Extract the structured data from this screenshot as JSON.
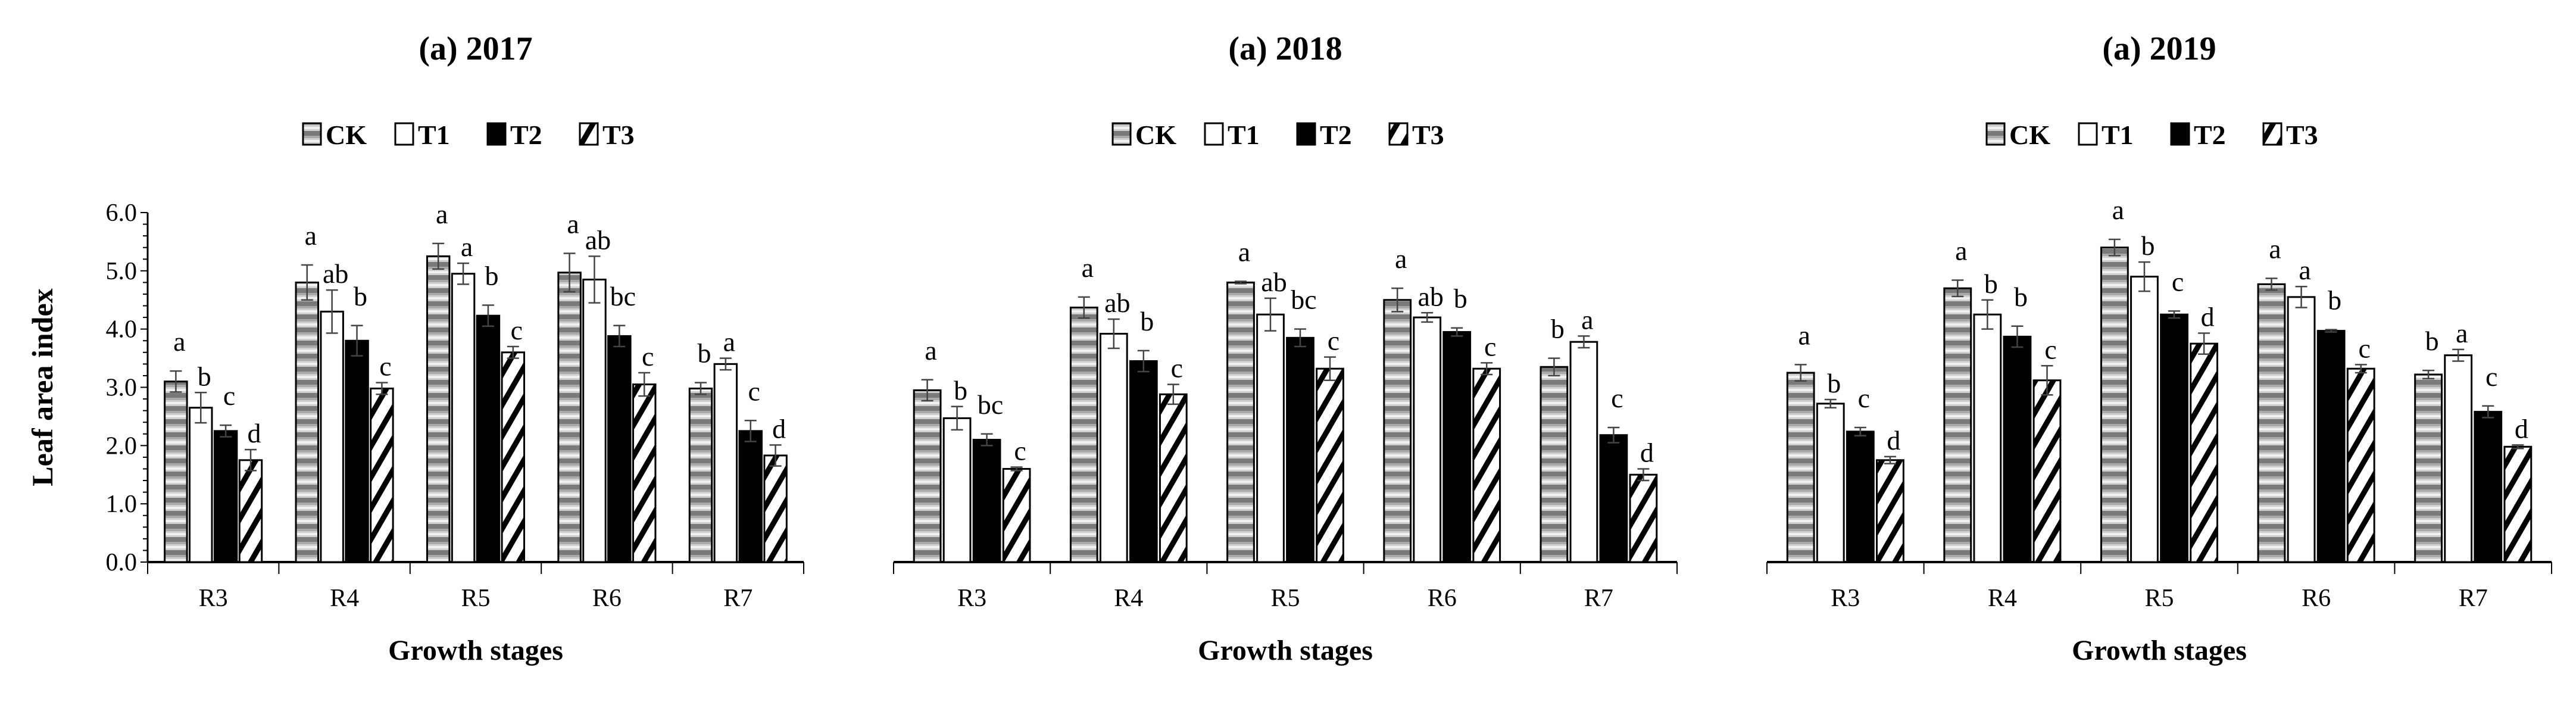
{
  "chart_data": [
    {
      "type": "bar",
      "title": "(a) 2017",
      "xlabel": "Growth stages",
      "ylabel": "Leaf area index",
      "ylim": [
        0,
        6
      ],
      "yticks": [
        "0.0",
        "1.0",
        "2.0",
        "3.0",
        "4.0",
        "5.0",
        "6.0"
      ],
      "categories": [
        "R3",
        "R4",
        "R5",
        "R6",
        "R7"
      ],
      "series": [
        {
          "name": "CK",
          "values": [
            3.1,
            4.8,
            5.25,
            4.97,
            2.98
          ],
          "errors": [
            0.18,
            0.3,
            0.22,
            0.33,
            0.1
          ],
          "letters": [
            "a",
            "a",
            "a",
            "a",
            "b"
          ]
        },
        {
          "name": "T1",
          "values": [
            2.65,
            4.3,
            4.95,
            4.85,
            3.4
          ],
          "errors": [
            0.26,
            0.37,
            0.18,
            0.4,
            0.1
          ],
          "letters": [
            "b",
            "ab",
            "a",
            "ab",
            "a"
          ]
        },
        {
          "name": "T2",
          "values": [
            2.25,
            3.8,
            4.23,
            3.88,
            2.25
          ],
          "errors": [
            0.1,
            0.26,
            0.18,
            0.18,
            0.18
          ],
          "letters": [
            "c",
            "b",
            "b",
            "bc",
            "c"
          ]
        },
        {
          "name": "T3",
          "values": [
            1.75,
            2.98,
            3.6,
            3.05,
            1.83
          ],
          "errors": [
            0.18,
            0.1,
            0.1,
            0.2,
            0.18
          ],
          "letters": [
            "d",
            "c",
            "c",
            "c",
            "d"
          ]
        }
      ]
    },
    {
      "type": "bar",
      "title": "(a) 2018",
      "xlabel": "Growth stages",
      "ylabel": "",
      "ylim": [
        0,
        6
      ],
      "categories": [
        "R3",
        "R4",
        "R5",
        "R6",
        "R7"
      ],
      "series": [
        {
          "name": "CK",
          "values": [
            2.95,
            4.37,
            4.8,
            4.5,
            3.35
          ],
          "errors": [
            0.18,
            0.18,
            0.02,
            0.2,
            0.15
          ],
          "letters": [
            "a",
            "a",
            "a",
            "a",
            "b"
          ]
        },
        {
          "name": "T1",
          "values": [
            2.47,
            3.92,
            4.25,
            4.2,
            3.78
          ],
          "errors": [
            0.2,
            0.25,
            0.28,
            0.08,
            0.1
          ],
          "letters": [
            "b",
            "ab",
            "ab",
            "ab",
            "a"
          ]
        },
        {
          "name": "T2",
          "values": [
            2.1,
            3.45,
            3.85,
            3.95,
            2.18
          ],
          "errors": [
            0.1,
            0.18,
            0.15,
            0.07,
            0.13
          ],
          "letters": [
            "bc",
            "b",
            "bc",
            "b",
            "c"
          ]
        },
        {
          "name": "T3",
          "values": [
            1.6,
            2.88,
            3.32,
            3.32,
            1.5
          ],
          "errors": [
            0.03,
            0.17,
            0.2,
            0.1,
            0.1
          ],
          "letters": [
            "c",
            "c",
            "c",
            "c",
            "d"
          ]
        }
      ]
    },
    {
      "type": "bar",
      "title": "(a) 2019",
      "xlabel": "Growth stages",
      "ylabel": "",
      "ylim": [
        0,
        6
      ],
      "categories": [
        "R3",
        "R4",
        "R5",
        "R6",
        "R7"
      ],
      "series": [
        {
          "name": "CK",
          "values": [
            3.25,
            4.7,
            5.4,
            4.77,
            3.22
          ],
          "errors": [
            0.14,
            0.14,
            0.14,
            0.1,
            0.07
          ],
          "letters": [
            "a",
            "a",
            "a",
            "a",
            "b"
          ]
        },
        {
          "name": "T1",
          "values": [
            2.72,
            4.25,
            4.9,
            4.55,
            3.55
          ],
          "errors": [
            0.07,
            0.25,
            0.25,
            0.18,
            0.1
          ],
          "letters": [
            "b",
            "b",
            "b",
            "a",
            "a"
          ]
        },
        {
          "name": "T2",
          "values": [
            2.24,
            3.87,
            4.25,
            3.97,
            2.58
          ],
          "errors": [
            0.07,
            0.18,
            0.06,
            0.02,
            0.1
          ],
          "letters": [
            "c",
            "b",
            "c",
            "b",
            "c"
          ]
        },
        {
          "name": "T3",
          "values": [
            1.75,
            3.12,
            3.75,
            3.32,
            1.98
          ],
          "errors": [
            0.06,
            0.25,
            0.18,
            0.07,
            0.03
          ],
          "letters": [
            "d",
            "c",
            "d",
            "c",
            "d"
          ]
        }
      ]
    }
  ]
}
